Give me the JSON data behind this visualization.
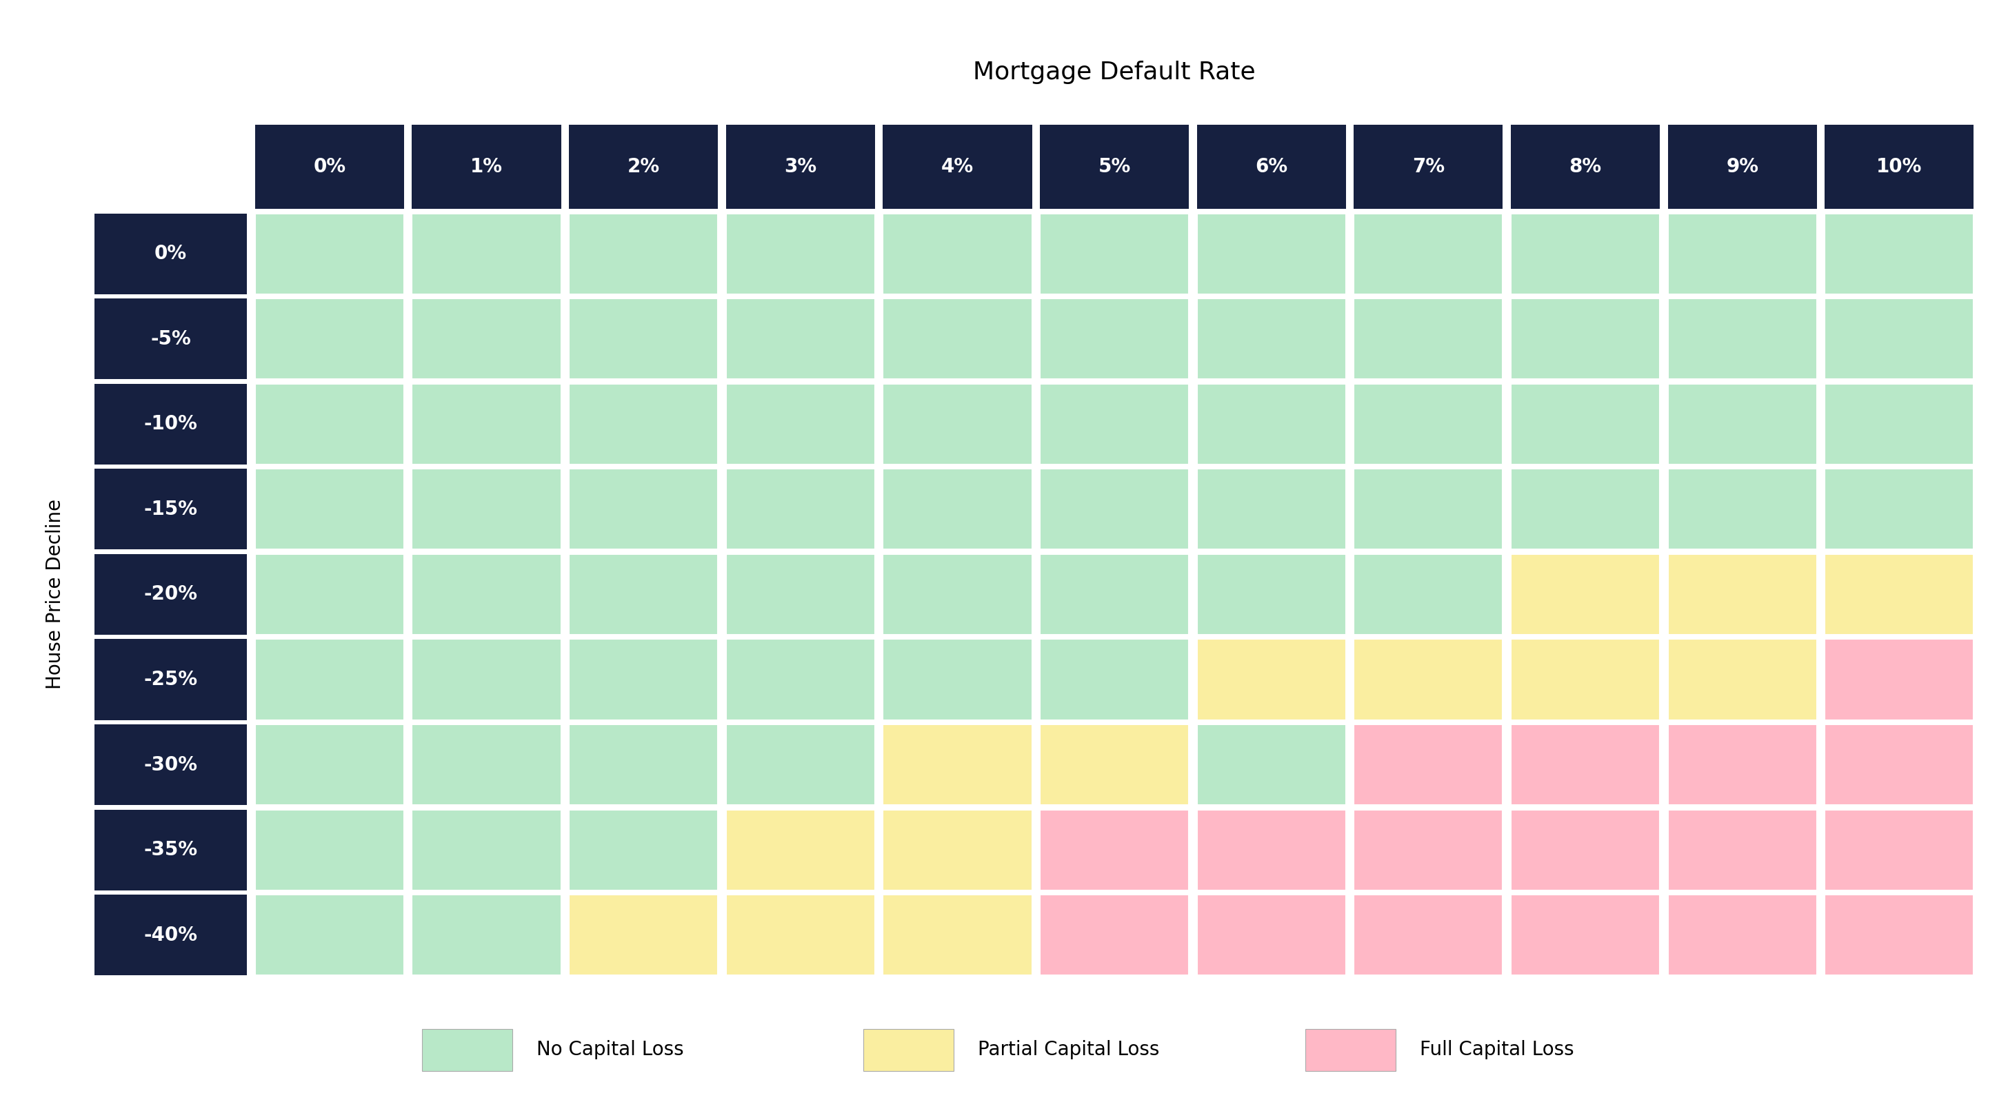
{
  "title": "Mortgage Default Rate",
  "col_labels": [
    "0%",
    "1%",
    "2%",
    "3%",
    "4%",
    "5%",
    "6%",
    "7%",
    "8%",
    "9%",
    "10%"
  ],
  "row_labels": [
    "0%",
    "-5%",
    "-10%",
    "-15%",
    "-20%",
    "-25%",
    "-30%",
    "-35%",
    "-40%"
  ],
  "ylabel": "House Price Decline",
  "header_bg": "#162040",
  "header_text": "#ffffff",
  "row_label_bg": "#162040",
  "row_label_text": "#ffffff",
  "green": "#b8e8c8",
  "yellow": "#faeea0",
  "pink": "#ffb8c6",
  "grid_color": "#ffffff",
  "bg_color": "#ffffff",
  "cell_data": [
    [
      "G",
      "G",
      "G",
      "G",
      "G",
      "G",
      "G",
      "G",
      "G",
      "G",
      "G"
    ],
    [
      "G",
      "G",
      "G",
      "G",
      "G",
      "G",
      "G",
      "G",
      "G",
      "G",
      "G"
    ],
    [
      "G",
      "G",
      "G",
      "G",
      "G",
      "G",
      "G",
      "G",
      "G",
      "G",
      "G"
    ],
    [
      "G",
      "G",
      "G",
      "G",
      "G",
      "G",
      "G",
      "G",
      "G",
      "G",
      "G"
    ],
    [
      "G",
      "G",
      "G",
      "G",
      "G",
      "G",
      "G",
      "G",
      "Y",
      "Y",
      "Y"
    ],
    [
      "G",
      "G",
      "G",
      "G",
      "G",
      "G",
      "Y",
      "Y",
      "Y",
      "Y",
      "P"
    ],
    [
      "G",
      "G",
      "G",
      "G",
      "Y",
      "Y",
      "G",
      "P",
      "P",
      "P",
      "P"
    ],
    [
      "G",
      "G",
      "G",
      "Y",
      "Y",
      "P",
      "P",
      "P",
      "P",
      "P",
      "P"
    ],
    [
      "G",
      "G",
      "Y",
      "Y",
      "Y",
      "P",
      "P",
      "P",
      "P",
      "P",
      "P"
    ]
  ],
  "legend_items": [
    {
      "label": "No Capital Loss",
      "color": "#b8e8c8"
    },
    {
      "label": "Partial Capital Loss",
      "color": "#faeea0"
    },
    {
      "label": "Full Capital Loss",
      "color": "#ffb8c6"
    }
  ],
  "title_fontsize": 26,
  "header_fontsize": 20,
  "row_label_fontsize": 20,
  "ylabel_fontsize": 20,
  "legend_fontsize": 20
}
